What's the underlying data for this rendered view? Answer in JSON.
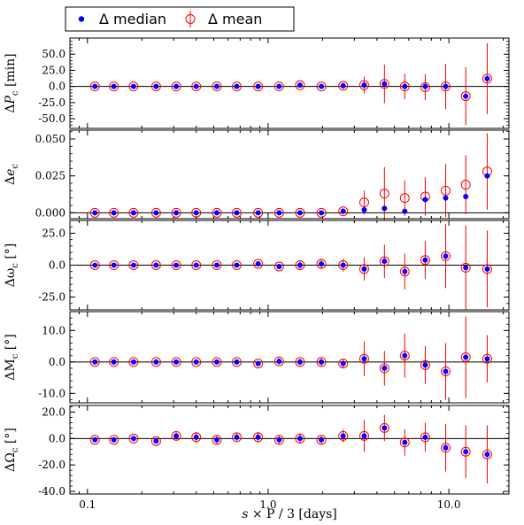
{
  "chart_data": {
    "type": "scatter",
    "x": [
      0.11,
      0.14,
      0.18,
      0.24,
      0.31,
      0.4,
      0.52,
      0.67,
      0.88,
      1.15,
      1.5,
      1.97,
      2.6,
      3.4,
      4.4,
      5.7,
      7.4,
      9.6,
      12.4,
      16.3
    ],
    "x_tick_labels": [
      "0.1",
      "1.0",
      "10.0"
    ],
    "xlabel_parts": [
      "s",
      " × P / 3 [days]"
    ],
    "legend": {
      "placement": "top-left",
      "entries": [
        {
          "marker": "filled-dot",
          "label": "Δ median"
        },
        {
          "marker": "open-circle-errorbar",
          "label": "Δ mean"
        }
      ]
    },
    "colors": {
      "median": "#0000ff",
      "mean": "#ff0000",
      "errorbar": "#ff0000",
      "zero_line": "#000000"
    },
    "panels": [
      {
        "ylabel_parts": [
          "Δ",
          "P",
          "c",
          " [min]"
        ],
        "ylim": [
          -65,
          75
        ],
        "ticks": [
          -50,
          -25,
          0,
          25,
          50
        ],
        "tick_labels": [
          "-50.0",
          "-25.0",
          "0.0",
          "25.0",
          "50.0"
        ],
        "median": [
          0,
          0,
          0,
          0,
          0,
          0,
          0,
          0,
          0,
          0,
          2,
          0,
          1,
          2,
          4,
          0,
          0,
          0,
          -15,
          12
        ],
        "mean": [
          0,
          0,
          0,
          0,
          0,
          0,
          0,
          0,
          0,
          0,
          2,
          0,
          1,
          2,
          4,
          0,
          -1,
          0,
          -15,
          12
        ],
        "err": [
          1,
          1,
          1,
          1,
          1,
          1,
          1,
          1,
          1,
          1,
          2,
          3,
          5,
          13,
          30,
          20,
          20,
          35,
          45,
          55
        ]
      },
      {
        "ylabel_parts": [
          "Δ",
          "e",
          "c",
          ""
        ],
        "ylim": [
          -0.004,
          0.056
        ],
        "ticks": [
          0,
          0.025,
          0.05
        ],
        "tick_labels": [
          "0.000",
          "0.025",
          "0.050"
        ],
        "median": [
          0,
          0,
          0,
          0,
          0,
          0,
          0,
          0,
          0,
          0,
          0,
          0,
          0.001,
          0.002,
          0.003,
          0.001,
          0.009,
          0.01,
          0.011,
          0.025
        ],
        "mean": [
          0,
          0,
          0,
          0,
          0,
          0,
          0,
          0,
          0,
          0,
          0,
          0,
          0.001,
          0.007,
          0.013,
          0.01,
          0.011,
          0.015,
          0.019,
          0.028
        ],
        "err": [
          0.0003,
          0.0003,
          0.0003,
          0.0003,
          0.0003,
          0.0003,
          0.0003,
          0.0003,
          0.0003,
          0.0003,
          0.0005,
          0.001,
          0.002,
          0.008,
          0.018,
          0.012,
          0.013,
          0.018,
          0.02,
          0.026
        ]
      },
      {
        "ylabel_parts": [
          "Δω",
          "",
          "c",
          " [°]"
        ],
        "ylim": [
          -35,
          35
        ],
        "ticks": [
          -25,
          0,
          25
        ],
        "tick_labels": [
          "-25.0",
          "0.0",
          "25.0"
        ],
        "median": [
          0,
          0,
          0,
          0,
          0,
          0,
          0,
          0,
          1,
          -1,
          0,
          1,
          0,
          -3,
          3,
          -5,
          4,
          7,
          -2,
          -3
        ],
        "mean": [
          0,
          0,
          0,
          0,
          0,
          0,
          0,
          0,
          1,
          -1,
          0,
          1,
          0,
          -3,
          3,
          -5,
          4,
          7,
          -2,
          -3
        ],
        "err": [
          1,
          1,
          1,
          1,
          1,
          1,
          1,
          1,
          1.5,
          2,
          3,
          4,
          5,
          9,
          13,
          14,
          15,
          25,
          33,
          30
        ]
      },
      {
        "ylabel_parts": [
          "ΔM",
          "",
          "c",
          " [°]"
        ],
        "ylim": [
          -13,
          16
        ],
        "ticks": [
          -10,
          0,
          10
        ],
        "tick_labels": [
          "-10.0",
          "0.0",
          "10.0"
        ],
        "median": [
          0,
          0,
          0,
          0,
          0,
          0,
          0,
          0,
          -0.5,
          0.2,
          0,
          0,
          -0.5,
          1,
          -2,
          2,
          -1,
          -3,
          1.5,
          1
        ],
        "mean": [
          0,
          0,
          0,
          0,
          0,
          0,
          0,
          0,
          -0.5,
          0.2,
          0,
          0,
          -0.5,
          1,
          -2,
          2,
          -1,
          -3,
          1.5,
          1
        ],
        "err": [
          0.4,
          0.4,
          0.4,
          0.4,
          0.4,
          0.4,
          0.4,
          0.5,
          0.8,
          1,
          1,
          1.3,
          1.5,
          5.5,
          5.5,
          7,
          6,
          9,
          13,
          7.5
        ]
      },
      {
        "ylabel_parts": [
          "ΔΩ",
          "",
          "c",
          " [°]"
        ],
        "ylim": [
          -42,
          25
        ],
        "ticks": [
          -40,
          -20,
          0,
          20
        ],
        "tick_labels": [
          "-40.0",
          "-20.0",
          "0.0",
          "20.0"
        ],
        "median": [
          -1,
          -1,
          0,
          -2,
          2,
          1,
          -1,
          1,
          1,
          -1,
          0,
          -1,
          2,
          2,
          8,
          -3,
          1,
          -7,
          -10,
          -12
        ],
        "mean": [
          -1,
          -1,
          0,
          -2,
          2,
          1,
          -1,
          1,
          1,
          -1,
          0,
          -1,
          2,
          2,
          8,
          -3,
          1,
          -7,
          -10,
          -12
        ],
        "err": [
          1.5,
          1.5,
          2,
          2,
          3,
          4,
          3,
          3,
          4,
          3,
          4,
          3,
          5,
          12,
          10,
          10,
          11,
          18,
          20,
          22
        ]
      }
    ]
  }
}
